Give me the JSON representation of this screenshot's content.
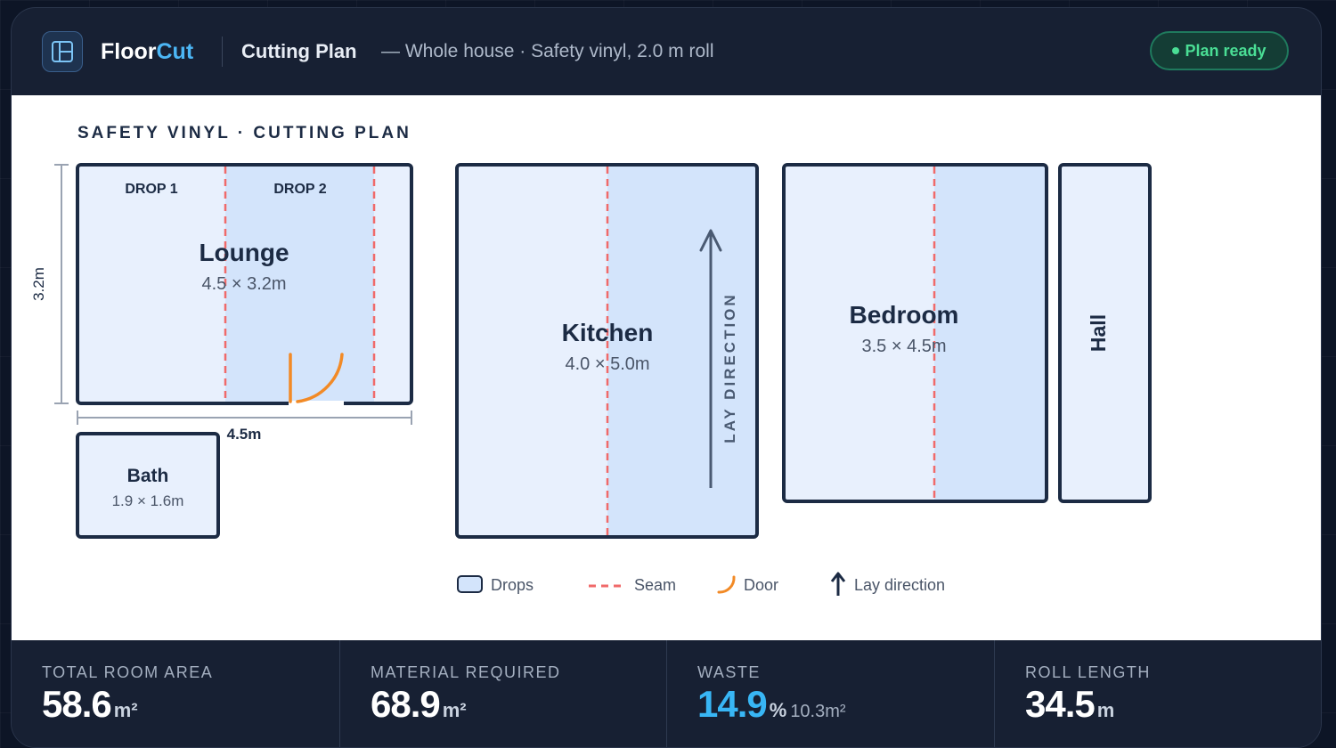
{
  "header": {
    "brand_primary": "Floor",
    "brand_accent": "Cut",
    "title": "Cutting Plan",
    "subtitle": "— Whole house · Safety vinyl, 2.0 m roll",
    "status": "Plan ready",
    "logo_icon": "layout-grid-icon"
  },
  "plan": {
    "heading": "SAFETY VINYL · CUTTING PLAN",
    "rooms": {
      "lounge": {
        "name": "Lounge",
        "dims": "4.5 × 3.2m",
        "drops": [
          "DROP 1",
          "DROP 2"
        ],
        "height_label": "3.2m",
        "width_label": "4.5m"
      },
      "bath": {
        "name": "Bath",
        "dims": "1.9 × 1.6m"
      },
      "kitchen": {
        "name": "Kitchen",
        "dims": "4.0 × 5.0m",
        "lay_label": "LAY DIRECTION"
      },
      "bedroom": {
        "name": "Bedroom",
        "dims": "3.5 × 4.5m"
      },
      "hall": {
        "name": "Hall"
      }
    },
    "legend": {
      "drops": "Drops",
      "seam": "Seam",
      "door": "Door",
      "lay": "Lay direction"
    }
  },
  "colors": {
    "wall": "#1c2b44",
    "drop_light": "#e8f0fd",
    "drop_alt": "#d3e4fb",
    "seam": "#f06a6a",
    "door": "#f28a26",
    "accent": "#4cb6f5"
  },
  "stats": [
    {
      "label": "TOTAL ROOM AREA",
      "value": "58.6",
      "unit": "m²",
      "extra": ""
    },
    {
      "label": "MATERIAL REQUIRED",
      "value": "68.9",
      "unit": "m²",
      "extra": ""
    },
    {
      "label": "WASTE",
      "value": "14.9",
      "unit": "%",
      "extra": "10.3m²"
    },
    {
      "label": "ROLL LENGTH",
      "value": "34.5",
      "unit": "m",
      "extra": ""
    }
  ]
}
